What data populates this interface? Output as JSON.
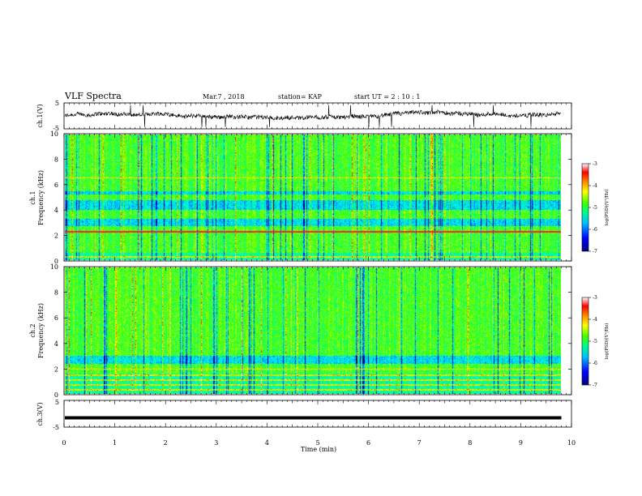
{
  "header": {
    "title": "VLF Spectra",
    "date": "Mar.7 , 2018",
    "station": "station= KAP",
    "start_ut": "start UT =  2 : 10 : 1"
  },
  "colors": {
    "frame": "#000000",
    "spectrogram_palette": [
      "#00007a",
      "#0000ff",
      "#00a0ff",
      "#00ffff",
      "#00ff80",
      "#60ff00",
      "#ffff00",
      "#ff8000",
      "#ff0000",
      "#ffffff"
    ]
  },
  "chart_data": [
    {
      "type": "line",
      "name": "ch1-waveform",
      "ylabel": "ch.1(V)",
      "ylim": [
        -5,
        5
      ],
      "yticks": [
        "5",
        "-5"
      ],
      "xlim": [
        0,
        10
      ],
      "description": "noisy wandering waveform between about -1.5 and 1.5 V"
    },
    {
      "type": "heatmap",
      "name": "ch1-spectrogram",
      "ylabel": "ch.1\nFrequency (kHz)",
      "ylim": [
        0,
        10
      ],
      "yticks": [
        "0",
        "2",
        "4",
        "6",
        "8",
        "10"
      ],
      "xlim": [
        0,
        9.8
      ],
      "bands_khz": [
        {
          "from": 0.0,
          "to": 0.6,
          "level": "striped"
        },
        {
          "from": 2.2,
          "to": 2.3,
          "level": "red-line"
        },
        {
          "from": 2.7,
          "to": 3.3,
          "level": "low"
        },
        {
          "from": 4.0,
          "to": 4.8,
          "level": "low"
        },
        {
          "from": 5.2,
          "to": 5.5,
          "level": "low"
        },
        {
          "from": 6.5,
          "to": 6.6,
          "level": "yellow-line"
        }
      ],
      "colorbar": {
        "label": "log(PSD)(V²/Hz)",
        "ticks": [
          "-3",
          "-4",
          "-5",
          "-6",
          "-7"
        ],
        "range": [
          -7,
          -3
        ]
      }
    },
    {
      "type": "heatmap",
      "name": "ch2-spectrogram",
      "ylabel": "ch.2\nFrequency (kHz)",
      "ylim": [
        0,
        10
      ],
      "yticks": [
        "0",
        "2",
        "4",
        "6",
        "8",
        "10"
      ],
      "xlim": [
        0,
        9.8
      ],
      "bands_khz": [
        {
          "from": 0.0,
          "to": 1.6,
          "level": "striped"
        },
        {
          "from": 1.9,
          "to": 2.0,
          "level": "yellow-line"
        },
        {
          "from": 2.4,
          "to": 3.0,
          "level": "low"
        }
      ],
      "colorbar": {
        "label": "log(PSD)(V²/Hz)",
        "ticks": [
          "-3",
          "-4",
          "-5",
          "-6",
          "-7"
        ],
        "range": [
          -7,
          -3
        ]
      }
    },
    {
      "type": "line",
      "name": "ch3-waveform",
      "ylabel": "ch.3(V)",
      "ylim": [
        -5,
        5
      ],
      "yticks": [
        "5",
        "-5"
      ],
      "constant_value": -1.5,
      "xlim": [
        0,
        9.8
      ]
    }
  ],
  "xaxis": {
    "label": "Time (min)",
    "range": [
      0,
      10
    ],
    "ticks": [
      "0",
      "1",
      "2",
      "3",
      "4",
      "5",
      "6",
      "7",
      "8",
      "9",
      "10"
    ]
  }
}
